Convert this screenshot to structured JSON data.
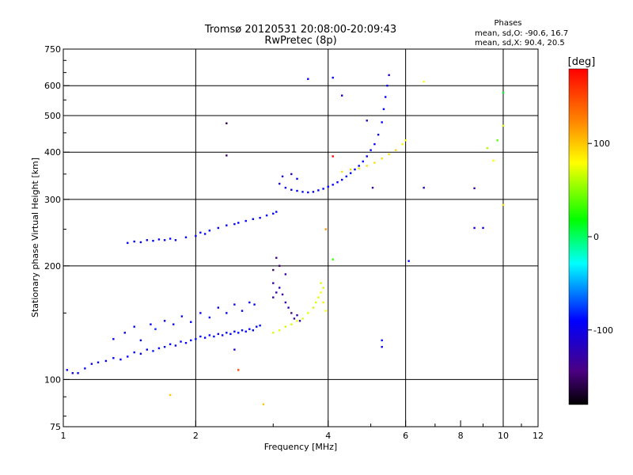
{
  "header": {
    "title": "Tromsø 20120531 20:08:00-20:09:43",
    "subtitle": "RwPretec (8p)",
    "phases_title": "Phases",
    "phases_line1": "mean, sd,O: -90.6, 16.7",
    "phases_line2": "mean, sd,X:  90.4, 20.5"
  },
  "colorbar": {
    "label": "[deg]",
    "ticks": [
      "100",
      "0",
      "-100"
    ],
    "range": [
      -180,
      180
    ],
    "colormap": [
      "#000000",
      "#4b0082",
      "#0000ff",
      "#00ffff",
      "#00ff00",
      "#ffff00",
      "#ff8000",
      "#ff0000"
    ]
  },
  "chart_data": {
    "type": "scatter",
    "title": "Tromsø 20120531 20:08:00-20:09:43",
    "subtitle": "RwPretec (8p)",
    "xlabel": "Frequency [MHz]",
    "ylabel": "Stationary phase Virtual Height [km]",
    "x_scale": "log",
    "y_scale": "log",
    "xlim": [
      1,
      12
    ],
    "ylim": [
      75,
      750
    ],
    "x_ticks": [
      1,
      2,
      4,
      6,
      8,
      10,
      12
    ],
    "y_ticks": [
      75,
      100,
      200,
      300,
      400,
      500,
      600,
      750
    ],
    "grid_x": [
      2,
      4,
      6,
      10
    ],
    "grid_y": [
      100,
      200,
      300,
      400,
      500,
      600
    ],
    "grid": true,
    "color_scale": "phase [deg], -180 to 180",
    "series": [
      {
        "points": [
          [
            1.02,
            106,
            -90
          ],
          [
            1.05,
            104,
            -95
          ],
          [
            1.08,
            104,
            -92
          ],
          [
            1.12,
            107,
            -88
          ],
          [
            1.16,
            110,
            -90
          ],
          [
            1.2,
            111,
            -93
          ],
          [
            1.25,
            112,
            -91
          ],
          [
            1.3,
            114,
            -89
          ],
          [
            1.35,
            113,
            -92
          ],
          [
            1.4,
            115,
            -90
          ],
          [
            1.45,
            118,
            -88
          ],
          [
            1.5,
            117,
            -94
          ],
          [
            1.55,
            120,
            -90
          ],
          [
            1.6,
            119,
            -85
          ],
          [
            1.65,
            121,
            -92
          ],
          [
            1.7,
            122,
            -88
          ],
          [
            1.75,
            124,
            -90
          ],
          [
            1.8,
            123,
            -91
          ],
          [
            1.85,
            126,
            -89
          ],
          [
            1.9,
            125,
            -95
          ],
          [
            1.95,
            127,
            -90
          ],
          [
            2.0,
            128,
            -88
          ],
          [
            2.05,
            130,
            -92
          ],
          [
            2.1,
            129,
            -90
          ],
          [
            2.15,
            131,
            -87
          ],
          [
            2.2,
            130,
            -91
          ],
          [
            2.25,
            132,
            -90
          ],
          [
            2.3,
            131,
            -93
          ],
          [
            2.35,
            133,
            -89
          ],
          [
            2.4,
            132,
            -90
          ],
          [
            2.45,
            134,
            -92
          ],
          [
            2.5,
            133,
            -88
          ],
          [
            2.55,
            135,
            -90
          ],
          [
            2.6,
            134,
            -91
          ],
          [
            2.65,
            136,
            -89
          ],
          [
            2.7,
            135,
            -90
          ],
          [
            2.75,
            138,
            -92
          ],
          [
            2.8,
            139,
            -88
          ]
        ]
      },
      {
        "points": [
          [
            1.3,
            128,
            -90
          ],
          [
            1.38,
            133,
            -92
          ],
          [
            1.45,
            138,
            -88
          ],
          [
            1.5,
            127,
            -90
          ],
          [
            1.58,
            140,
            -95
          ],
          [
            1.62,
            136,
            -80
          ],
          [
            1.7,
            143,
            -90
          ],
          [
            1.78,
            140,
            -92
          ],
          [
            1.86,
            147,
            -88
          ],
          [
            1.95,
            142,
            -90
          ],
          [
            2.05,
            150,
            -91
          ],
          [
            2.15,
            146,
            -89
          ],
          [
            2.25,
            155,
            -90
          ],
          [
            2.35,
            150,
            -92
          ],
          [
            2.45,
            158,
            -88
          ],
          [
            2.55,
            152,
            -90
          ],
          [
            2.65,
            160,
            -93
          ],
          [
            2.72,
            158,
            -90
          ]
        ]
      },
      {
        "points": [
          [
            1.4,
            230,
            -95
          ],
          [
            1.45,
            232,
            -93
          ],
          [
            1.5,
            231,
            -90
          ],
          [
            1.55,
            234,
            -92
          ],
          [
            1.6,
            233,
            -91
          ],
          [
            1.65,
            235,
            -94
          ],
          [
            1.7,
            234,
            -90
          ],
          [
            1.75,
            236,
            -92
          ],
          [
            1.8,
            234,
            -95
          ],
          [
            1.9,
            238,
            -92
          ],
          [
            2.0,
            240,
            -90
          ],
          [
            2.05,
            245,
            -93
          ],
          [
            2.1,
            243,
            -92
          ],
          [
            2.15,
            248,
            -91
          ],
          [
            2.25,
            252,
            -94
          ],
          [
            2.35,
            256,
            -90
          ],
          [
            2.45,
            258,
            -92
          ],
          [
            2.5,
            260,
            -91
          ],
          [
            2.6,
            263,
            -93
          ],
          [
            2.7,
            266,
            -90
          ],
          [
            2.8,
            268,
            -92
          ],
          [
            2.9,
            272,
            -91
          ],
          [
            3.0,
            275,
            -93
          ],
          [
            3.05,
            278,
            -95
          ]
        ]
      },
      {
        "points": [
          [
            3.1,
            330,
            -110
          ],
          [
            3.2,
            322,
            -100
          ],
          [
            3.3,
            318,
            -95
          ],
          [
            3.4,
            316,
            -90
          ],
          [
            3.5,
            314,
            -88
          ],
          [
            3.6,
            313,
            -92
          ],
          [
            3.7,
            314,
            -90
          ],
          [
            3.8,
            317,
            -91
          ],
          [
            3.9,
            320,
            -93
          ],
          [
            4.0,
            324,
            -89
          ],
          [
            4.1,
            328,
            -90
          ],
          [
            4.2,
            333,
            -92
          ],
          [
            4.3,
            338,
            -90
          ],
          [
            4.4,
            345,
            -88
          ],
          [
            4.5,
            352,
            -91
          ],
          [
            4.6,
            360,
            -93
          ],
          [
            4.7,
            368,
            -90
          ],
          [
            4.8,
            378,
            -89
          ],
          [
            4.9,
            390,
            -92
          ],
          [
            5.0,
            405,
            -90
          ],
          [
            5.1,
            420,
            -91
          ],
          [
            5.2,
            445,
            -95
          ],
          [
            5.3,
            480,
            -92
          ],
          [
            5.35,
            520,
            -90
          ],
          [
            5.4,
            560,
            -93
          ],
          [
            5.45,
            600,
            -95
          ],
          [
            5.5,
            640,
            -110
          ],
          [
            3.15,
            345,
            -115
          ],
          [
            3.3,
            350,
            -120
          ],
          [
            3.4,
            340,
            -100
          ]
        ]
      },
      {
        "points": [
          [
            4.3,
            355,
            90
          ],
          [
            4.5,
            360,
            92
          ],
          [
            4.7,
            362,
            88
          ],
          [
            4.9,
            368,
            90
          ],
          [
            5.1,
            375,
            91
          ],
          [
            5.3,
            385,
            93
          ],
          [
            5.5,
            395,
            90
          ],
          [
            5.7,
            405,
            95
          ],
          [
            5.9,
            420,
            85
          ],
          [
            6.0,
            430,
            80
          ],
          [
            6.6,
            615,
            80
          ]
        ]
      },
      {
        "points": [
          [
            3.0,
            180,
            -130
          ],
          [
            3.0,
            165,
            -125
          ],
          [
            3.05,
            170,
            -128
          ],
          [
            3.1,
            175,
            -120
          ],
          [
            3.15,
            168,
            -135
          ],
          [
            3.2,
            160,
            -130
          ],
          [
            3.25,
            155,
            -125
          ],
          [
            3.3,
            150,
            -140
          ],
          [
            3.35,
            145,
            -130
          ],
          [
            3.4,
            148,
            -120
          ],
          [
            3.45,
            143,
            -125
          ],
          [
            3.0,
            195,
            -150
          ],
          [
            3.05,
            210,
            -140
          ],
          [
            3.1,
            200,
            -150
          ],
          [
            3.2,
            190,
            -130
          ]
        ]
      },
      {
        "points": [
          [
            3.0,
            133,
            70
          ],
          [
            3.1,
            135,
            72
          ],
          [
            3.2,
            138,
            68
          ],
          [
            3.3,
            140,
            70
          ],
          [
            3.4,
            143,
            75
          ],
          [
            3.5,
            145,
            70
          ],
          [
            3.6,
            150,
            72
          ],
          [
            3.7,
            155,
            68
          ],
          [
            3.75,
            160,
            70
          ],
          [
            3.8,
            165,
            72
          ],
          [
            3.85,
            170,
            78
          ],
          [
            3.9,
            175,
            70
          ],
          [
            3.9,
            160,
            85
          ],
          [
            3.95,
            152,
            80
          ],
          [
            3.85,
            180,
            70
          ]
        ]
      },
      {
        "points": [
          [
            4.1,
            390,
            180
          ],
          [
            5.05,
            322,
            -140
          ],
          [
            6.6,
            322,
            -120
          ],
          [
            8.6,
            321,
            -130
          ],
          [
            8.6,
            252,
            -105
          ],
          [
            9.0,
            252,
            -100
          ],
          [
            9.5,
            380,
            80
          ],
          [
            9.2,
            410,
            60
          ],
          [
            9.7,
            430,
            40
          ],
          [
            10.0,
            290,
            90
          ],
          [
            10.0,
            470,
            70
          ],
          [
            10.0,
            575,
            10
          ],
          [
            2.35,
            477,
            -160
          ],
          [
            2.35,
            392,
            -150
          ],
          [
            3.6,
            625,
            -100
          ],
          [
            4.1,
            630,
            -90
          ],
          [
            4.3,
            565,
            -100
          ],
          [
            4.9,
            485,
            -110
          ],
          [
            1.75,
            91,
            100
          ],
          [
            2.85,
            86,
            100
          ],
          [
            3.95,
            250,
            120
          ],
          [
            4.1,
            208,
            30
          ],
          [
            2.45,
            120,
            -110
          ],
          [
            2.5,
            106,
            150
          ],
          [
            5.3,
            127,
            -90
          ],
          [
            5.3,
            122,
            -100
          ],
          [
            6.1,
            206,
            -90
          ]
        ]
      }
    ]
  }
}
